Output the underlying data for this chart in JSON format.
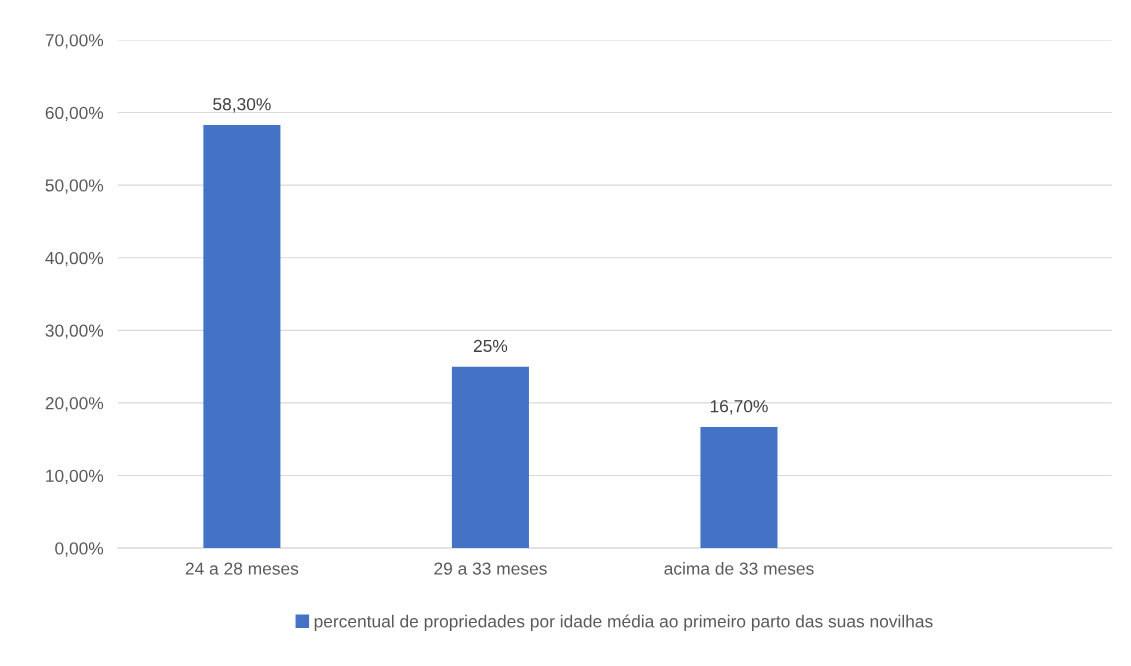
{
  "chart_data": {
    "type": "bar",
    "categories": [
      "24 a 28 meses",
      "29 a 33 meses",
      "acima de 33 meses",
      null
    ],
    "series": [
      {
        "name": "percentual de propriedades por idade média ao primeiro parto das suas novilhas",
        "color": "#4472c4",
        "values": [
          58.3,
          25,
          16.7,
          null
        ],
        "value_labels": [
          "58,30%",
          "25%",
          "16,70%",
          null
        ]
      }
    ],
    "ylim": [
      0,
      70
    ],
    "yticks": [
      {
        "value": 0,
        "label": "0,00%"
      },
      {
        "value": 10,
        "label": "10,00%"
      },
      {
        "value": 20,
        "label": "20,00%"
      },
      {
        "value": 30,
        "label": "30,00%"
      },
      {
        "value": 40,
        "label": "40,00%"
      },
      {
        "value": 50,
        "label": "50,00%"
      },
      {
        "value": 60,
        "label": "60,00%"
      },
      {
        "value": 70,
        "label": "70,00%"
      }
    ],
    "grid": "y",
    "legend": "bottom"
  }
}
